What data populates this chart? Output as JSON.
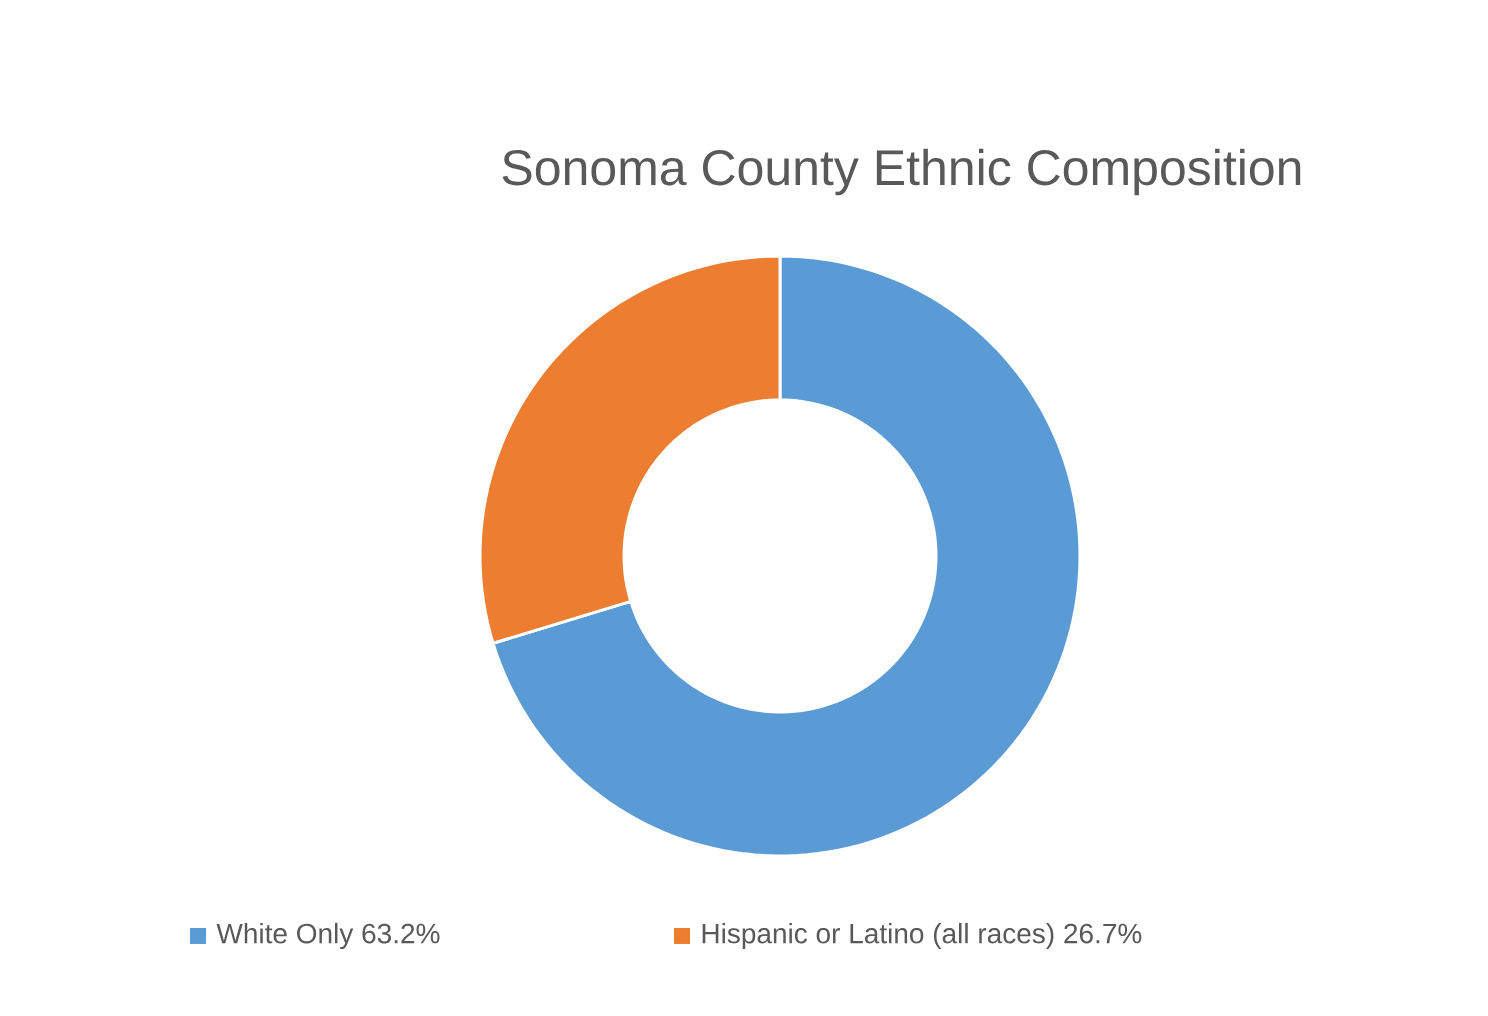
{
  "chart_data": {
    "type": "donut",
    "title": "Sonoma County Ethnic Composition",
    "categories": [
      "White Only 63.2%",
      "Hispanic or Latino (all races)  26.7%"
    ],
    "values": [
      63.2,
      26.7
    ],
    "colors": [
      "#5b9bd5",
      "#ed7d31"
    ],
    "legend": "bottom"
  }
}
